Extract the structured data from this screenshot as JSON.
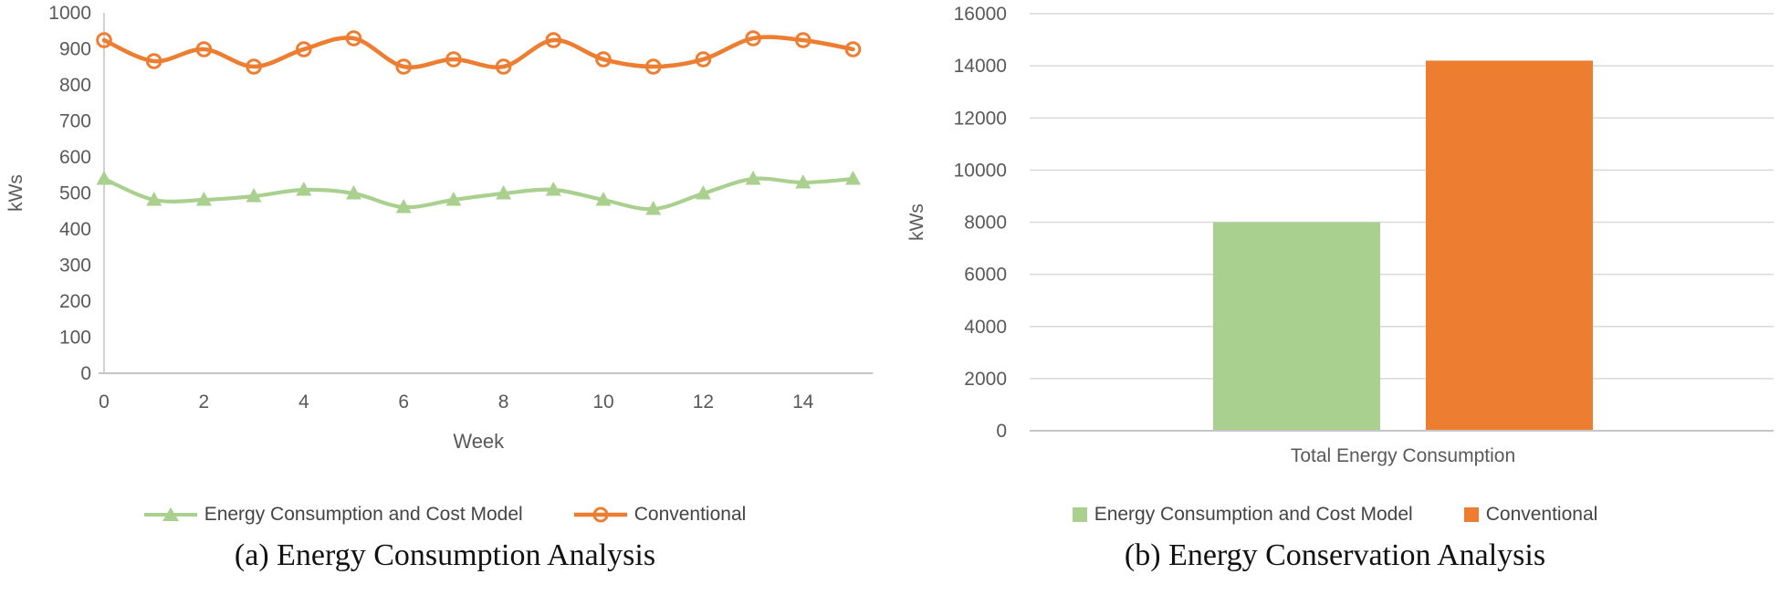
{
  "colors": {
    "model_green": "#A9D08E",
    "conventional_orange": "#ED7D31",
    "axis_text": "#595959",
    "axis_line": "#C6C6C6",
    "gridline": "#D9D9D9",
    "legend_text": "#444444"
  },
  "panel_a": {
    "caption": "(a) Energy Consumption Analysis"
  },
  "panel_b": {
    "caption": "(b) Energy Conservation Analysis"
  },
  "chart_data": [
    {
      "type": "line",
      "title": "",
      "xlabel": "Week",
      "ylabel": "kWs",
      "x": [
        0,
        1,
        2,
        3,
        4,
        5,
        6,
        7,
        8,
        9,
        10,
        11,
        12,
        13,
        14,
        15
      ],
      "xticks": [
        0,
        2,
        4,
        6,
        8,
        10,
        12,
        14
      ],
      "ylim": [
        0,
        1000
      ],
      "yticks": [
        0,
        100,
        200,
        300,
        400,
        500,
        600,
        700,
        800,
        900,
        1000
      ],
      "grid": false,
      "legend_position": "bottom",
      "series": [
        {
          "name": "Energy Consumption and Cost Model",
          "color": "#A9D08E",
          "marker": "triangle",
          "values": [
            540,
            480,
            480,
            490,
            510,
            500,
            460,
            480,
            500,
            510,
            480,
            455,
            500,
            540,
            530,
            540
          ]
        },
        {
          "name": "Conventional",
          "color": "#ED7D31",
          "marker": "open-circle",
          "values": [
            925,
            865,
            900,
            850,
            900,
            930,
            850,
            870,
            850,
            925,
            870,
            850,
            870,
            930,
            925,
            900
          ]
        }
      ]
    },
    {
      "type": "bar",
      "title": "",
      "xlabel": "",
      "ylabel": "kWs",
      "categories": [
        "Total Energy Consumption"
      ],
      "ylim": [
        0,
        16000
      ],
      "yticks": [
        0,
        2000,
        4000,
        6000,
        8000,
        10000,
        12000,
        14000,
        16000
      ],
      "grid": true,
      "legend_position": "bottom",
      "series": [
        {
          "name": "Energy Consumption and Cost Model",
          "color": "#A9D08E",
          "values": [
            8000
          ]
        },
        {
          "name": "Conventional",
          "color": "#ED7D31",
          "values": [
            14200
          ]
        }
      ]
    }
  ]
}
